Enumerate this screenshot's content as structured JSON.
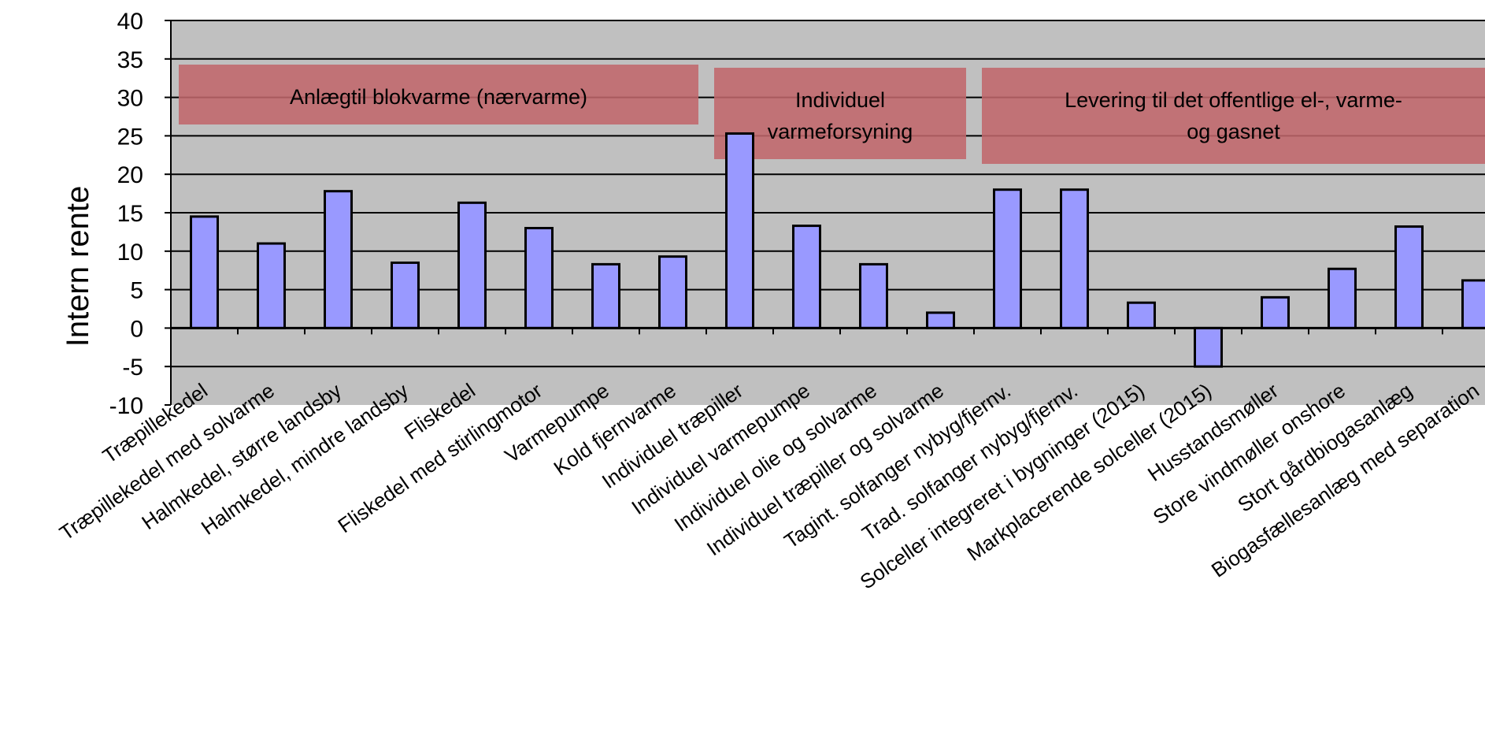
{
  "chart_data": {
    "type": "bar",
    "ylabel": "Intern rente",
    "ylim": [
      -10,
      40
    ],
    "yticks": [
      40,
      35,
      30,
      25,
      20,
      15,
      10,
      5,
      0,
      -5,
      -10
    ],
    "grid": true,
    "categories": [
      "Træpillekedel",
      "Træpillekedel med solvarme",
      "Halmkedel, større landsby",
      "Halmkedel, mindre landsby",
      "Fliskedel",
      "Fliskedel med stirlingmotor",
      "Varmepumpe",
      "Kold fjernvarme",
      "Individuel træpiller",
      "Individuel varmepumpe",
      "Individuel olie og solvarme",
      "Individuel træpiller og solvarme",
      "Tagint. solfanger nybyg/fjernv.",
      "Trad. solfanger nybyg/fjernv.",
      "Solceller integreret i bygninger (2015)",
      "Markplacerende solceller (2015)",
      "Husstandsmøller",
      "Store vindmøller onshore",
      "Stort gårdbiogasanlæg",
      "Biogasfællesanlæg med separation"
    ],
    "values": [
      14.5,
      11,
      17.8,
      8.5,
      16.3,
      13,
      8.3,
      9.3,
      25.3,
      13.3,
      8.3,
      2,
      18,
      18,
      3.3,
      -5,
      4,
      7.7,
      13.2,
      6.2
    ],
    "colors": {
      "bar": "#9999ff",
      "plot_bg": "#c0c0c0",
      "group_box": "#c0676b"
    },
    "groups": [
      {
        "lines": [
          "Anlægtil blokvarme (nærvarme)"
        ],
        "first": 0,
        "last": 7
      },
      {
        "lines": [
          "Individuel",
          "varmeforsyning"
        ],
        "first": 8,
        "last": 11
      },
      {
        "lines": [
          "Levering til det offentlige el-, varme-",
          "og gasnet"
        ],
        "first": 12,
        "last": 19
      }
    ]
  }
}
